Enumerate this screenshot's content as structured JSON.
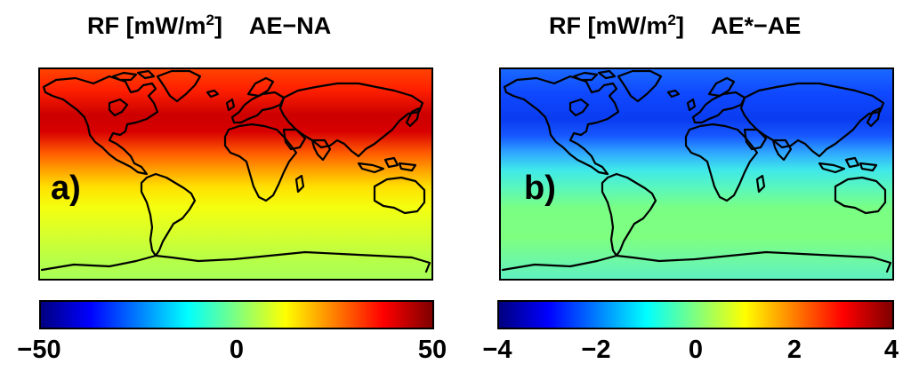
{
  "panels": [
    {
      "title": {
        "prefix": "RF [mW/m",
        "sup": "2",
        "suffix": "]",
        "case": "AE−NA"
      },
      "label": "a)",
      "colorbar": {
        "min": -50,
        "max": 50,
        "ticks": [
          "−50",
          "0",
          "50"
        ],
        "colormap": "jet"
      }
    },
    {
      "title": {
        "prefix": "RF [mW/m",
        "sup": "2",
        "suffix": "]",
        "case": "AE*−AE"
      },
      "label": "b)",
      "colorbar": {
        "min": -4,
        "max": 4,
        "ticks": [
          "−4",
          "−2",
          "0",
          "2",
          "4"
        ],
        "colormap": "jet"
      }
    }
  ],
  "colors": {
    "jet": [
      "#00007f",
      "#0000ff",
      "#007fff",
      "#00ffff",
      "#7fff7f",
      "#ffff00",
      "#ff7f00",
      "#ff0000",
      "#7f0000"
    ],
    "coastline": "#000000"
  }
}
